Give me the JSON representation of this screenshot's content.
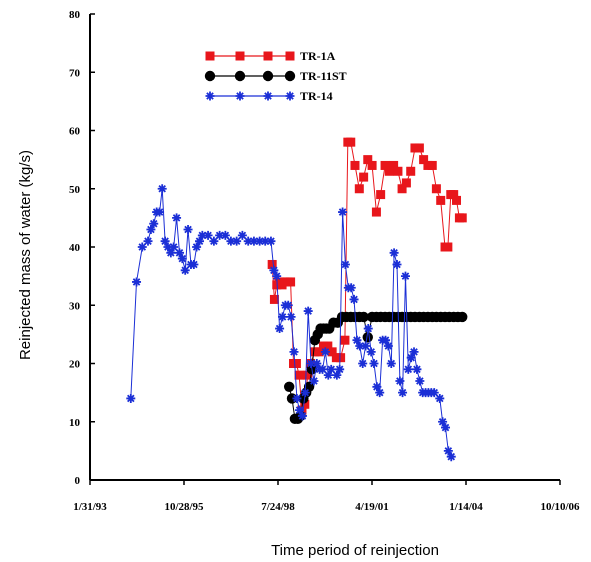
{
  "chart_data": {
    "type": "line",
    "title": "",
    "xlabel": "Time period of reinjection",
    "ylabel": "Reinjected mass of water (kg/s)",
    "ylim": [
      0,
      80
    ],
    "yticks": [
      0,
      10,
      20,
      30,
      40,
      50,
      60,
      70,
      80
    ],
    "xticks": [
      "1/31/93",
      "10/28/95",
      "7/24/98",
      "4/19/01",
      "1/14/04",
      "10/10/06"
    ],
    "xlim": [
      "1/31/93",
      "10/10/06"
    ],
    "grid": false,
    "legend_position": "top-left",
    "series": [
      {
        "name": "TR-1A",
        "color": "#e8161b",
        "marker": "square",
        "points": [
          [
            "5/23/98",
            37
          ],
          [
            "6/16/98",
            31
          ],
          [
            "7/11/98",
            33.5
          ],
          [
            "8/5/98",
            34
          ],
          [
            "9/5/98",
            33.5
          ],
          [
            "10/5/98",
            34
          ],
          [
            "11/5/98",
            34
          ],
          [
            "12/5/98",
            34
          ],
          [
            "1/5/99",
            20
          ],
          [
            "2/5/99",
            20
          ],
          [
            "3/5/99",
            18
          ],
          [
            "4/5/99",
            12
          ],
          [
            "5/5/99",
            13
          ],
          [
            "6/5/99",
            18
          ],
          [
            "7/5/99",
            20
          ],
          [
            "8/20/99",
            22
          ],
          [
            "10/5/99",
            22
          ],
          [
            "11/20/99",
            23
          ],
          [
            "1/5/00",
            23
          ],
          [
            "2/20/00",
            22
          ],
          [
            "4/5/00",
            21
          ],
          [
            "5/20/00",
            21
          ],
          [
            "7/5/00",
            24
          ],
          [
            "8/5/00",
            58
          ],
          [
            "9/5/00",
            58
          ],
          [
            "10/20/00",
            54
          ],
          [
            "12/5/00",
            50
          ],
          [
            "1/20/01",
            52
          ],
          [
            "3/5/01",
            55
          ],
          [
            "4/20/01",
            54
          ],
          [
            "6/5/01",
            46
          ],
          [
            "7/20/01",
            49
          ],
          [
            "9/5/01",
            54
          ],
          [
            "10/20/01",
            53
          ],
          [
            "12/5/01",
            54
          ],
          [
            "1/20/02",
            53
          ],
          [
            "3/5/02",
            50
          ],
          [
            "4/20/02",
            51
          ],
          [
            "6/5/02",
            53
          ],
          [
            "7/20/02",
            57
          ],
          [
            "9/5/02",
            57
          ],
          [
            "10/20/02",
            55
          ],
          [
            "12/5/02",
            54
          ],
          [
            "1/20/03",
            54
          ],
          [
            "3/5/03",
            50
          ],
          [
            "4/20/03",
            48
          ],
          [
            "6/5/03",
            40
          ],
          [
            "7/5/03",
            40
          ],
          [
            "8/5/03",
            49
          ],
          [
            "9/5/03",
            49
          ],
          [
            "10/5/03",
            48
          ],
          [
            "11/5/03",
            45
          ],
          [
            "12/5/03",
            45
          ]
        ]
      },
      {
        "name": "TR-11ST",
        "color": "#000000",
        "marker": "circle",
        "points": [
          [
            "11/20/98",
            16
          ],
          [
            "12/20/98",
            14
          ],
          [
            "1/20/99",
            10.5
          ],
          [
            "2/20/99",
            10.5
          ],
          [
            "3/20/99",
            11
          ],
          [
            "4/20/99",
            14
          ],
          [
            "5/20/99",
            15
          ],
          [
            "6/20/99",
            16
          ],
          [
            "7/20/99",
            19
          ],
          [
            "8/20/99",
            24
          ],
          [
            "9/20/99",
            25
          ],
          [
            "10/20/99",
            26
          ],
          [
            "11/20/99",
            26
          ],
          [
            "12/20/99",
            26
          ],
          [
            "1/20/00",
            26
          ],
          [
            "3/5/00",
            27
          ],
          [
            "4/20/00",
            27
          ],
          [
            "6/5/00",
            28
          ],
          [
            "7/20/00",
            28
          ],
          [
            "9/5/00",
            28
          ],
          [
            "10/20/00",
            28
          ],
          [
            "12/5/00",
            28
          ],
          [
            "1/20/01",
            28
          ],
          [
            "3/5/01",
            24.5
          ],
          [
            "4/20/01",
            28
          ],
          [
            "6/5/01",
            28
          ],
          [
            "7/20/01",
            28
          ],
          [
            "9/5/01",
            28
          ],
          [
            "10/20/01",
            28
          ],
          [
            "12/5/01",
            28
          ],
          [
            "1/20/02",
            28
          ],
          [
            "3/5/02",
            28
          ],
          [
            "4/20/02",
            28
          ],
          [
            "6/5/02",
            28
          ],
          [
            "7/20/02",
            28
          ],
          [
            "9/5/02",
            28
          ],
          [
            "10/20/02",
            28
          ],
          [
            "12/5/02",
            28
          ],
          [
            "1/20/03",
            28
          ],
          [
            "3/5/03",
            28
          ],
          [
            "4/20/03",
            28
          ],
          [
            "6/5/03",
            28
          ],
          [
            "7/20/03",
            28
          ],
          [
            "9/5/03",
            28
          ],
          [
            "10/20/03",
            28
          ],
          [
            "12/5/03",
            28
          ]
        ]
      },
      {
        "name": "TR-14",
        "color": "#1b2fd6",
        "marker": "star",
        "points": [
          [
            "4/10/94",
            14
          ],
          [
            "6/10/94",
            34
          ],
          [
            "8/10/94",
            40
          ],
          [
            "10/10/94",
            41
          ],
          [
            "11/10/94",
            43
          ],
          [
            "12/10/94",
            44
          ],
          [
            "1/10/95",
            46
          ],
          [
            "2/10/95",
            46
          ],
          [
            "3/10/95",
            50
          ],
          [
            "4/10/95",
            41
          ],
          [
            "5/10/95",
            40
          ],
          [
            "6/10/95",
            39
          ],
          [
            "7/10/95",
            40
          ],
          [
            "8/10/95",
            45
          ],
          [
            "9/10/95",
            39
          ],
          [
            "10/10/95",
            38
          ],
          [
            "11/10/95",
            36
          ],
          [
            "12/10/95",
            43
          ],
          [
            "1/10/96",
            37
          ],
          [
            "2/10/96",
            37
          ],
          [
            "3/10/96",
            40
          ],
          [
            "4/10/96",
            41
          ],
          [
            "5/10/96",
            42
          ],
          [
            "7/10/96",
            42
          ],
          [
            "9/10/96",
            41
          ],
          [
            "11/10/96",
            42
          ],
          [
            "1/10/97",
            42
          ],
          [
            "3/10/97",
            41
          ],
          [
            "5/10/97",
            41
          ],
          [
            "7/10/97",
            42
          ],
          [
            "9/10/97",
            41
          ],
          [
            "11/10/97",
            41
          ],
          [
            "1/10/98",
            41
          ],
          [
            "3/10/98",
            41
          ],
          [
            "5/10/98",
            41
          ],
          [
            "6/10/98",
            36
          ],
          [
            "7/10/98",
            35
          ],
          [
            "8/10/98",
            26
          ],
          [
            "9/10/98",
            28
          ],
          [
            "10/10/98",
            30
          ],
          [
            "11/10/98",
            30
          ],
          [
            "12/10/98",
            28
          ],
          [
            "1/10/99",
            22
          ],
          [
            "2/10/99",
            14
          ],
          [
            "3/10/99",
            12
          ],
          [
            "4/10/99",
            11
          ],
          [
            "5/10/99",
            15
          ],
          [
            "6/10/99",
            29
          ],
          [
            "7/10/99",
            20
          ],
          [
            "8/10/99",
            17
          ],
          [
            "9/10/99",
            20
          ],
          [
            "10/10/99",
            19
          ],
          [
            "11/10/99",
            19
          ],
          [
            "12/10/99",
            22
          ],
          [
            "1/10/00",
            18
          ],
          [
            "2/10/00",
            19
          ],
          [
            "4/10/00",
            18
          ],
          [
            "5/10/00",
            19
          ],
          [
            "6/10/00",
            46
          ],
          [
            "7/10/00",
            37
          ],
          [
            "8/10/00",
            33
          ],
          [
            "9/10/00",
            33
          ],
          [
            "10/10/00",
            31
          ],
          [
            "11/10/00",
            24
          ],
          [
            "12/10/00",
            23
          ],
          [
            "1/10/01",
            20
          ],
          [
            "2/10/01",
            23
          ],
          [
            "3/10/01",
            26
          ],
          [
            "4/10/01",
            22
          ],
          [
            "5/10/01",
            20
          ],
          [
            "6/10/01",
            16
          ],
          [
            "7/10/01",
            15
          ],
          [
            "8/10/01",
            24
          ],
          [
            "9/10/01",
            24
          ],
          [
            "10/10/01",
            23
          ],
          [
            "11/10/01",
            20
          ],
          [
            "12/10/01",
            39
          ],
          [
            "1/10/02",
            37
          ],
          [
            "2/10/02",
            17
          ],
          [
            "3/10/02",
            15
          ],
          [
            "4/10/02",
            35
          ],
          [
            "5/10/02",
            19
          ],
          [
            "6/10/02",
            21
          ],
          [
            "7/10/02",
            22
          ],
          [
            "8/10/02",
            19
          ],
          [
            "9/10/02",
            17
          ],
          [
            "10/10/02",
            15
          ],
          [
            "11/10/02",
            15
          ],
          [
            "12/10/02",
            15
          ],
          [
            "1/10/03",
            15
          ],
          [
            "2/10/03",
            15
          ],
          [
            "4/10/03",
            14
          ],
          [
            "5/10/03",
            10
          ],
          [
            "6/10/03",
            9
          ],
          [
            "7/10/03",
            5
          ],
          [
            "8/10/03",
            4
          ]
        ]
      }
    ]
  }
}
